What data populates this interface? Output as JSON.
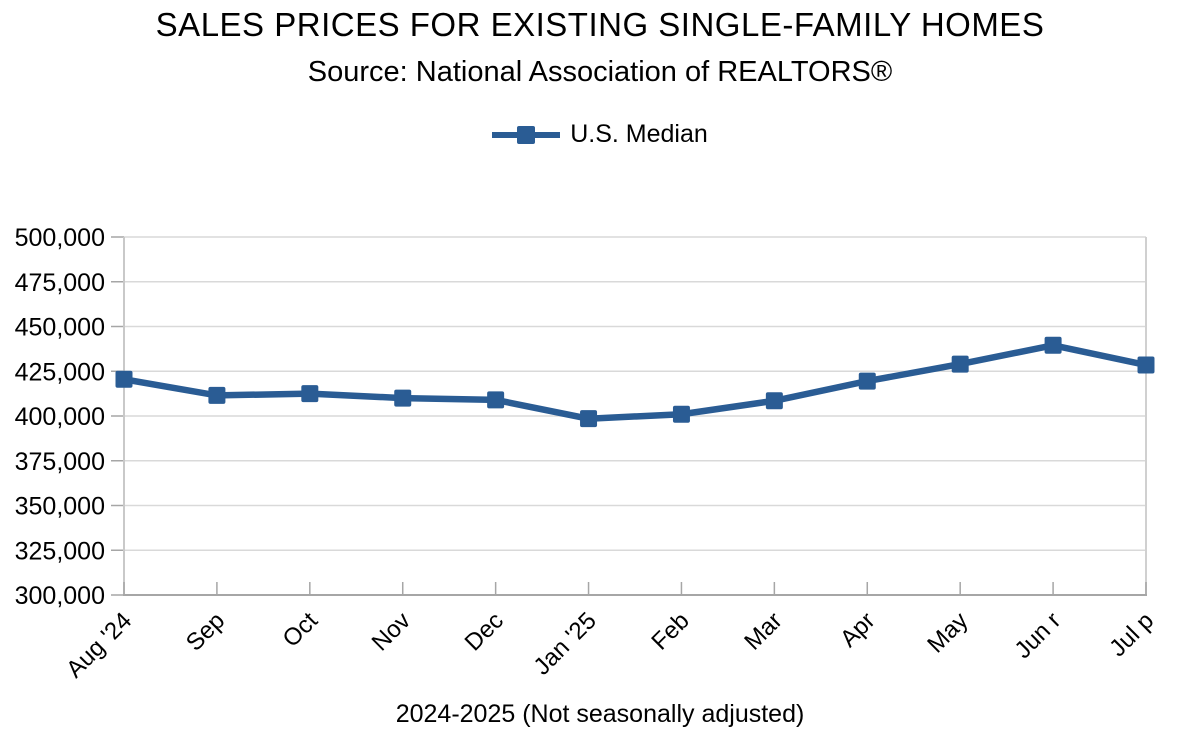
{
  "chart_data": {
    "type": "line",
    "title": "SALES PRICES FOR EXISTING SINGLE-FAMILY HOMES",
    "subtitle": "Source: National Association of REALTORS®",
    "xlabel": "2024-2025 (Not seasonally adjusted)",
    "ylabel": "",
    "categories": [
      "Aug '24",
      "Sep",
      "Oct",
      "Nov",
      "Dec",
      "Jan '25",
      "Feb",
      "Mar",
      "Apr",
      "May",
      "Jun r",
      "Jul p"
    ],
    "series": [
      {
        "name": "U.S. Median",
        "values": [
          420500,
          411500,
          412500,
          410000,
          409000,
          398500,
          401000,
          408500,
          419500,
          429000,
          439500,
          428500
        ]
      }
    ],
    "ylim": [
      300000,
      500000
    ],
    "ytick_step": 25000,
    "grid": "horizontal-gridlines-with-right-border",
    "legend_position": "top-center",
    "marker": "square"
  },
  "colors": {
    "series_line": "#2a5c94",
    "gridline": "#d9d9d9",
    "plot_border": "#d0d0d0",
    "y_axis_line": "#c9c9c9",
    "x_axis_line": "#a6a6a6",
    "tick": "#a6a6a6",
    "text": "#000000",
    "background": "#ffffff"
  }
}
